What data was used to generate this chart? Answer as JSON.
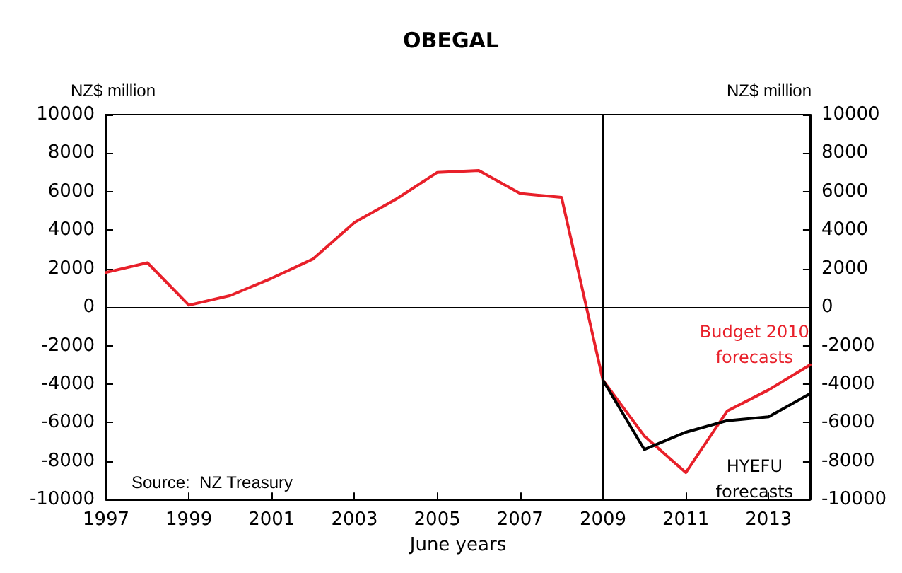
{
  "chart_data": {
    "type": "line",
    "title": "OBEGAL",
    "xlabel": "June years",
    "ylabel": "NZ$ million",
    "y2label": "NZ$ million",
    "x": [
      1997,
      1998,
      1999,
      2000,
      2001,
      2002,
      2003,
      2004,
      2005,
      2006,
      2007,
      2008,
      2009,
      2010,
      2011,
      2012,
      2013,
      2014
    ],
    "series": [
      {
        "name": "Budget 2010 forecasts",
        "color": "#e8202a",
        "values": [
          1800,
          2300,
          100,
          600,
          1500,
          2500,
          4400,
          5600,
          7000,
          7100,
          5900,
          5700,
          -3800,
          -6700,
          -8600,
          -5400,
          -4300,
          -3000
        ]
      },
      {
        "name": "HYEFU forecasts",
        "color": "#000000",
        "values": [
          null,
          null,
          null,
          null,
          null,
          null,
          null,
          null,
          null,
          null,
          null,
          null,
          -3800,
          -7400,
          -6500,
          -5900,
          -5700,
          -4500
        ]
      }
    ],
    "xlim": [
      1997,
      2014
    ],
    "xticks": [
      1997,
      1999,
      2001,
      2003,
      2005,
      2007,
      2009,
      2011,
      2013
    ],
    "ylim": [
      -10000,
      10000
    ],
    "yticks": [
      -10000,
      -8000,
      -6000,
      -4000,
      -2000,
      0,
      2000,
      4000,
      6000,
      8000,
      10000
    ],
    "y2lim": [
      -10000,
      10000
    ],
    "y2ticks": [
      -10000,
      -8000,
      -6000,
      -4000,
      -2000,
      0,
      2000,
      4000,
      6000,
      8000,
      10000
    ],
    "ref_lines": [
      {
        "axis": "y",
        "value": 0,
        "color": "#000000"
      },
      {
        "axis": "x",
        "value": 2009,
        "color": "#000000"
      }
    ],
    "annotations": [
      "Source:  NZ Treasury"
    ],
    "grid": false,
    "legend": false,
    "marker": "none",
    "line_style": "solid"
  }
}
